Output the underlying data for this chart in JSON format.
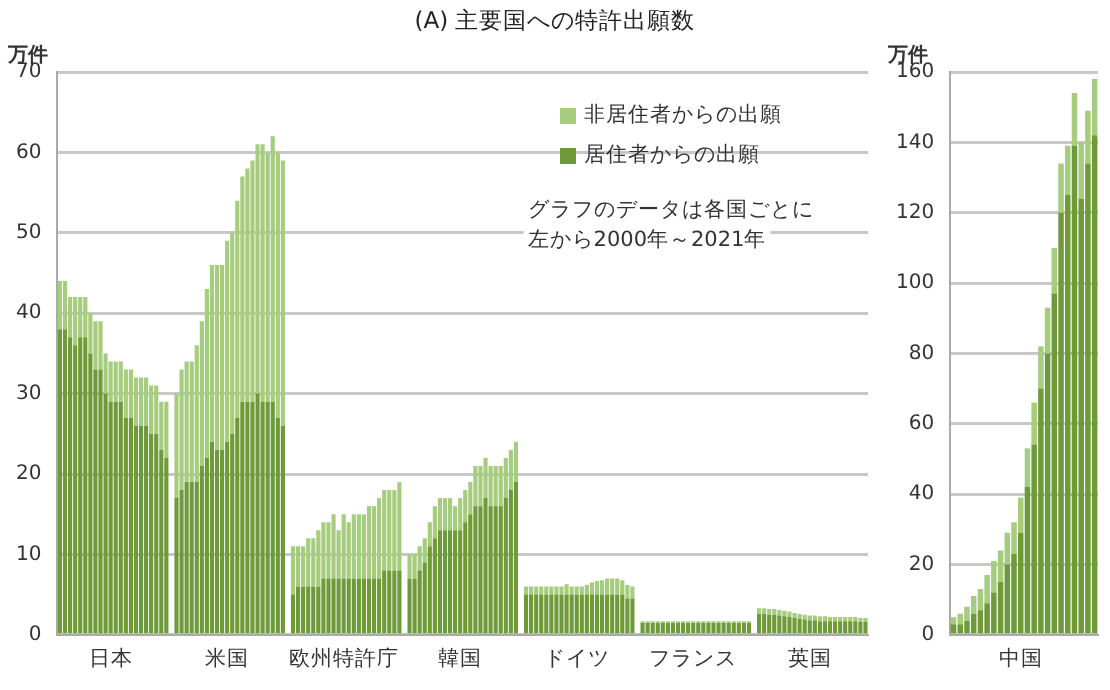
{
  "chart_data": [
    {
      "type": "bar",
      "title": "(A) 主要国への特許出願数",
      "ylabel": "万件",
      "stacked": true,
      "grid": "y",
      "legend": "top right",
      "annotations": [
        "グラフのデータは各国ごとに",
        "左から2000年～2021年"
      ],
      "ylim": [
        0,
        70
      ],
      "yticks": [
        0,
        10,
        20,
        30,
        40,
        50,
        60,
        70
      ],
      "categories": [
        null,
        null,
        null,
        null,
        null,
        null,
        null,
        null,
        null,
        null,
        "日本",
        null,
        null,
        null,
        null,
        null,
        null,
        null,
        null,
        null,
        null,
        null,
        null,
        null,
        null,
        null,
        null,
        null,
        null,
        null,
        null,
        null,
        null,
        "米国",
        null,
        null,
        null,
        null,
        null,
        null,
        null,
        null,
        null,
        null,
        null,
        null,
        null,
        null,
        null,
        null,
        null,
        null,
        null,
        null,
        null,
        null,
        "欧州特許庁",
        null,
        null,
        null,
        null,
        null,
        null,
        null,
        null,
        null,
        null,
        null,
        null,
        null,
        null,
        null,
        null,
        null,
        null,
        null,
        null,
        null,
        null,
        "韓国",
        null,
        null,
        null,
        null,
        null,
        null,
        null,
        null,
        null,
        null,
        null,
        null,
        null,
        null,
        null,
        null,
        null,
        null,
        null,
        null,
        null,
        null,
        "ドイツ",
        null,
        null,
        null,
        null,
        null,
        null,
        null,
        null,
        null,
        null,
        null,
        null,
        null,
        null,
        null,
        null,
        null,
        null,
        null,
        null,
        null,
        null,
        "フランス",
        null,
        null,
        null,
        null,
        null,
        null,
        null,
        null,
        null,
        null,
        null,
        null,
        null,
        null,
        null,
        null,
        null,
        null,
        null,
        null,
        null,
        null,
        "英国",
        null,
        null,
        null,
        null,
        null,
        null,
        null,
        null,
        null,
        null,
        null
      ],
      "series": [
        {
          "name": "居住者からの出願",
          "color": "#6f9a3a",
          "values": [
            38,
            38,
            37,
            36,
            37,
            37,
            35,
            33,
            33,
            30,
            29,
            29,
            29,
            27,
            27,
            26,
            26,
            26,
            25,
            25,
            23,
            22,
            null,
            17,
            18,
            19,
            19,
            19,
            21,
            22,
            24,
            23,
            23,
            24,
            25,
            27,
            29,
            29,
            29,
            30,
            29,
            29,
            29,
            27,
            26,
            null,
            5,
            6,
            6,
            6,
            6,
            6,
            7,
            7,
            7,
            7,
            7,
            7,
            7,
            7,
            7,
            7,
            7,
            7,
            8,
            8,
            8,
            8,
            null,
            7,
            7,
            8,
            9,
            11,
            12,
            13,
            13,
            13,
            13,
            13,
            14,
            15,
            16,
            16,
            17,
            16,
            16,
            16,
            17,
            18,
            19,
            null,
            5,
            5,
            5,
            5,
            5,
            5,
            5,
            5,
            5,
            5,
            5,
            5,
            5,
            5,
            5,
            5,
            5,
            5,
            5,
            5,
            4.5,
            4.5,
            null,
            1.5,
            1.5,
            1.5,
            1.5,
            1.5,
            1.5,
            1.5,
            1.5,
            1.5,
            1.5,
            1.5,
            1.5,
            1.5,
            1.5,
            1.5,
            1.5,
            1.5,
            1.5,
            1.5,
            1.5,
            1.5,
            1.5,
            null,
            2.6,
            2.6,
            2.5,
            2.5,
            2.4,
            2.3,
            2.2,
            2.1,
            2,
            1.9,
            1.8,
            1.8,
            1.7,
            1.7,
            1.7,
            1.7,
            1.7,
            1.7,
            1.7,
            1.7,
            1.6,
            1.6
          ]
        },
        {
          "name": "非居住者からの出願",
          "color": "#a6cc7e",
          "values": [
            6,
            6,
            5,
            6,
            5,
            5,
            5,
            6,
            6,
            5,
            5,
            5,
            5,
            6,
            6,
            6,
            6,
            6,
            6,
            6,
            6,
            7,
            null,
            13,
            15,
            15,
            15,
            17,
            18,
            21,
            22,
            23,
            23,
            25,
            25,
            27,
            28,
            29,
            30,
            31,
            32,
            31,
            33,
            33,
            33,
            null,
            6,
            5,
            5,
            6,
            6,
            7,
            7,
            7,
            8,
            6,
            8,
            7,
            8,
            8,
            8,
            9,
            9,
            10,
            10,
            10,
            10,
            11,
            null,
            3,
            3,
            3,
            3,
            3,
            4,
            4,
            4,
            4,
            3,
            4,
            4,
            4,
            5,
            5,
            5,
            5,
            5,
            5,
            5,
            5,
            5,
            null,
            1,
            1,
            1,
            1,
            1,
            1,
            1,
            1,
            1.3,
            1,
            1,
            1,
            1.2,
            1.5,
            1.7,
            1.8,
            2,
            2,
            2,
            1.8,
            1.7,
            1.5,
            null,
            0.2,
            0.2,
            0.2,
            0.2,
            0.2,
            0.2,
            0.2,
            0.2,
            0.2,
            0.2,
            0.2,
            0.2,
            0.2,
            0.2,
            0.2,
            0.2,
            0.2,
            0.2,
            0.2,
            0.2,
            0.2,
            0.2,
            null,
            0.7,
            0.7,
            0.7,
            0.7,
            0.7,
            0.7,
            0.7,
            0.6,
            0.6,
            0.6,
            0.6,
            0.6,
            0.6,
            0.6,
            0.5,
            0.5,
            0.5,
            0.5,
            0.5,
            0.5,
            0.5,
            0.5
          ]
        }
      ]
    },
    {
      "type": "bar",
      "ylabel": "万件",
      "stacked": true,
      "grid": "y",
      "ylim": [
        0,
        160
      ],
      "yticks": [
        0,
        20,
        40,
        60,
        80,
        100,
        120,
        140,
        160
      ],
      "categories": [
        null,
        null,
        null,
        null,
        null,
        null,
        null,
        null,
        null,
        null,
        "中国",
        null,
        null,
        null,
        null,
        null,
        null,
        null,
        null,
        null,
        null,
        null
      ],
      "series": [
        {
          "color": "#6f9a3a",
          "values": [
            3,
            3,
            4,
            6,
            7,
            9,
            12,
            15,
            20,
            23,
            29,
            42,
            54,
            70,
            80,
            97,
            120,
            125,
            139,
            124,
            134,
            142
          ]
        },
        {
          "color": "#a6cc7e",
          "values": [
            2,
            3,
            4,
            5,
            6,
            8,
            9,
            9,
            9,
            9,
            10,
            11,
            12,
            12,
            13,
            13,
            14,
            14,
            15,
            16,
            15,
            16
          ]
        }
      ]
    }
  ]
}
